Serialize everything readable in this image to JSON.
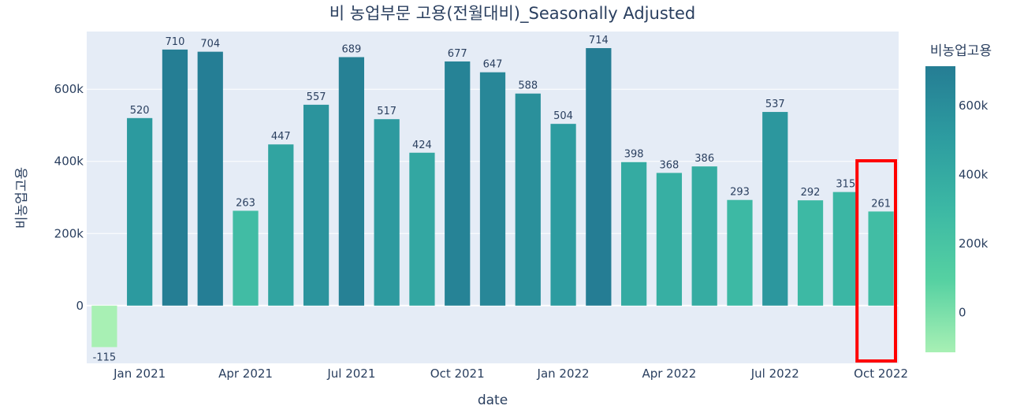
{
  "chart_data": {
    "type": "bar",
    "title": "비 농업부문 고용(전월대비)_Seasonally Adjusted",
    "xlabel": "date",
    "ylabel": "비농업고용",
    "colorbar_title": "비농업고용",
    "categories": [
      "Dec 2020",
      "Jan 2021",
      "Feb 2021",
      "Mar 2021",
      "Apr 2021",
      "May 2021",
      "Jun 2021",
      "Jul 2021",
      "Aug 2021",
      "Sep 2021",
      "Oct 2021",
      "Nov 2021",
      "Dec 2021",
      "Jan 2022",
      "Feb 2022",
      "Mar 2022",
      "Apr 2022",
      "May 2022",
      "Jun 2022",
      "Jul 2022",
      "Aug 2022",
      "Sep 2022",
      "Oct 2022"
    ],
    "values": [
      -115000,
      520000,
      710000,
      704000,
      263000,
      447000,
      557000,
      689000,
      517000,
      424000,
      677000,
      647000,
      588000,
      504000,
      714000,
      398000,
      368000,
      386000,
      293000,
      537000,
      292000,
      315000,
      261000
    ],
    "data_labels": [
      "-115",
      "520",
      "710",
      "704",
      "263",
      "447",
      "557",
      "689",
      "517",
      "424",
      "677",
      "647",
      "588",
      "504",
      "714",
      "398",
      "368",
      "386",
      "293",
      "537",
      "292",
      "315",
      "261"
    ],
    "x_ticks": [
      {
        "index": 1,
        "label": "Jan 2021"
      },
      {
        "index": 4,
        "label": "Apr 2021"
      },
      {
        "index": 7,
        "label": "Jul 2021"
      },
      {
        "index": 10,
        "label": "Oct 2021"
      },
      {
        "index": 13,
        "label": "Jan 2022"
      },
      {
        "index": 16,
        "label": "Apr 2022"
      },
      {
        "index": 19,
        "label": "Jul 2022"
      },
      {
        "index": 22,
        "label": "Oct 2022"
      }
    ],
    "y_ticks": [
      {
        "value": 0,
        "label": "0"
      },
      {
        "value": 200000,
        "label": "200k"
      },
      {
        "value": 400000,
        "label": "400k"
      },
      {
        "value": 600000,
        "label": "600k"
      }
    ],
    "ylim": [
      -160000,
      760000
    ],
    "colorbar": {
      "range": [
        -115000,
        714000
      ],
      "ticks": [
        {
          "value": 0,
          "label": "0"
        },
        {
          "value": 200000,
          "label": "200k"
        },
        {
          "value": 400000,
          "label": "400k"
        },
        {
          "value": 600000,
          "label": "600k"
        }
      ],
      "colorscale": [
        "#a8f0b4",
        "#56d1a2",
        "#3cb8a4",
        "#2d9ca0",
        "#257d94"
      ]
    },
    "highlight": {
      "category": "Oct 2022",
      "color": "#ff0000"
    },
    "plot_background": "#e5ecf6",
    "grid": true
  }
}
